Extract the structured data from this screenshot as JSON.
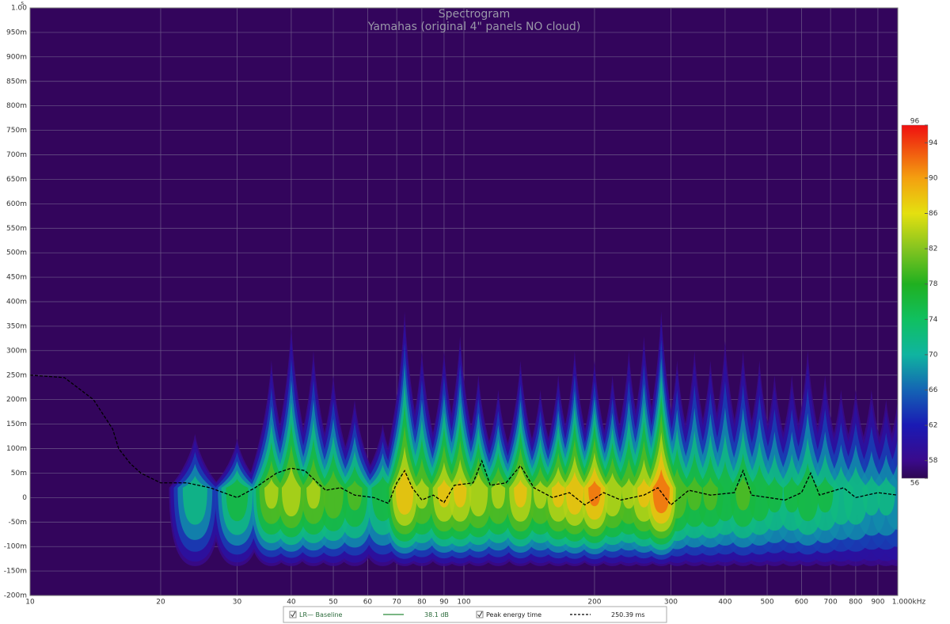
{
  "chart_data": {
    "type": "spectrogram",
    "title": "Spectrogram",
    "subtitle": "Yamahas (original 4\" panels NO cloud)",
    "y_unit": "s",
    "log_x": true,
    "grid": true,
    "background": "#33055c",
    "xlim": [
      10,
      1000
    ],
    "xticks": [
      10,
      20,
      30,
      40,
      50,
      60,
      70,
      80,
      90,
      100,
      200,
      300,
      400,
      500,
      600,
      700,
      800,
      900,
      {
        "value": 1000,
        "label": "1.000kHz"
      }
    ],
    "ylim": [
      -0.2,
      1
    ],
    "yticks": [
      {
        "value": 1,
        "label": "1.00"
      },
      {
        "value": 0.95,
        "label": "950m"
      },
      {
        "value": 0.9,
        "label": "900m"
      },
      {
        "value": 0.85,
        "label": "850m"
      },
      {
        "value": 0.8,
        "label": "800m"
      },
      {
        "value": 0.75,
        "label": "750m"
      },
      {
        "value": 0.7,
        "label": "700m"
      },
      {
        "value": 0.65,
        "label": "650m"
      },
      {
        "value": 0.6,
        "label": "600m"
      },
      {
        "value": 0.55,
        "label": "550m"
      },
      {
        "value": 0.5,
        "label": "500m"
      },
      {
        "value": 0.45,
        "label": "450m"
      },
      {
        "value": 0.4,
        "label": "400m"
      },
      {
        "value": 0.35,
        "label": "350m"
      },
      {
        "value": 0.3,
        "label": "300m"
      },
      {
        "value": 0.25,
        "label": "250m"
      },
      {
        "value": 0.2,
        "label": "200m"
      },
      {
        "value": 0.15,
        "label": "150m"
      },
      {
        "value": 0.1,
        "label": "100m"
      },
      {
        "value": 0.05,
        "label": "50m"
      },
      0,
      {
        "value": -0.05,
        "label": "-50m"
      },
      {
        "value": -0.1,
        "label": "-100m"
      },
      {
        "value": -0.15,
        "label": "-150m"
      },
      {
        "value": -0.2,
        "label": "-200m"
      }
    ],
    "ridges": {
      "freq": [
        24,
        30,
        36,
        40,
        45,
        50,
        56,
        65,
        73,
        80,
        90,
        98,
        108,
        120,
        135,
        150,
        165,
        180,
        200,
        220,
        240,
        260,
        285,
        310,
        340,
        370,
        400,
        440,
        480,
        520,
        570,
        620,
        680,
        740,
        800,
        870,
        940,
        1000
      ],
      "top": [
        0.13,
        0.12,
        0.28,
        0.35,
        0.3,
        0.25,
        0.2,
        0.15,
        0.38,
        0.3,
        0.3,
        0.33,
        0.25,
        0.22,
        0.28,
        0.22,
        0.25,
        0.3,
        0.28,
        0.25,
        0.3,
        0.33,
        0.38,
        0.28,
        0.3,
        0.28,
        0.32,
        0.3,
        0.28,
        0.25,
        0.25,
        0.3,
        0.25,
        0.22,
        0.22,
        0.22,
        0.2,
        0.2
      ],
      "level": [
        74,
        78,
        84,
        86,
        84,
        82,
        80,
        78,
        90,
        84,
        88,
        88,
        86,
        84,
        88,
        84,
        88,
        90,
        92,
        86,
        84,
        88,
        94,
        82,
        80,
        80,
        78,
        80,
        78,
        76,
        76,
        78,
        76,
        74,
        74,
        72,
        72,
        70
      ]
    },
    "peak_energy": {
      "color": "#000000",
      "x": [
        10,
        12,
        14,
        15.5,
        16,
        17,
        18,
        20,
        23,
        26,
        30,
        33,
        37,
        40,
        43,
        46,
        48,
        52,
        56,
        62,
        67,
        70,
        73,
        76,
        80,
        85,
        90,
        95,
        105,
        110,
        115,
        125,
        135,
        145,
        160,
        175,
        190,
        210,
        230,
        260,
        280,
        300,
        330,
        370,
        420,
        440,
        460,
        550,
        600,
        630,
        660,
        750,
        800,
        900,
        1000
      ],
      "values": [
        0.25,
        0.245,
        0.2,
        0.14,
        0.1,
        0.07,
        0.05,
        0.03,
        0.03,
        0.02,
        0,
        0.02,
        0.05,
        0.06,
        0.055,
        0.03,
        0.015,
        0.02,
        0.005,
        0,
        -0.012,
        0.03,
        0.055,
        0.02,
        -0.005,
        0.005,
        -0.01,
        0.025,
        0.03,
        0.075,
        0.025,
        0.03,
        0.065,
        0.02,
        0,
        0.01,
        -0.015,
        0.01,
        -0.005,
        0.005,
        0.02,
        -0.015,
        0.015,
        0.005,
        0.01,
        0.055,
        0.005,
        -0.005,
        0.01,
        0.05,
        0.005,
        0.02,
        0,
        0.01,
        0.005
      ]
    },
    "colorbar": {
      "ticks": [
        56,
        58,
        62,
        66,
        70,
        74,
        78,
        82,
        86,
        90,
        94,
        96
      ],
      "colors": [
        "#2e0852",
        "#3a0a8c",
        "#1a1ab4",
        "#1464b4",
        "#10b4a0",
        "#10c060",
        "#20b020",
        "#84c420",
        "#e4e010",
        "#f4a010",
        "#f04010",
        "#f01010"
      ]
    },
    "legend": {
      "items": [
        {
          "label": "LR— Baseline",
          "value": "38.1 dB",
          "color": "#2a8a3a",
          "dashed": false
        },
        {
          "label": "Peak energy time",
          "value": "250.39 ms",
          "color": "#000000",
          "dashed": true
        }
      ]
    }
  }
}
